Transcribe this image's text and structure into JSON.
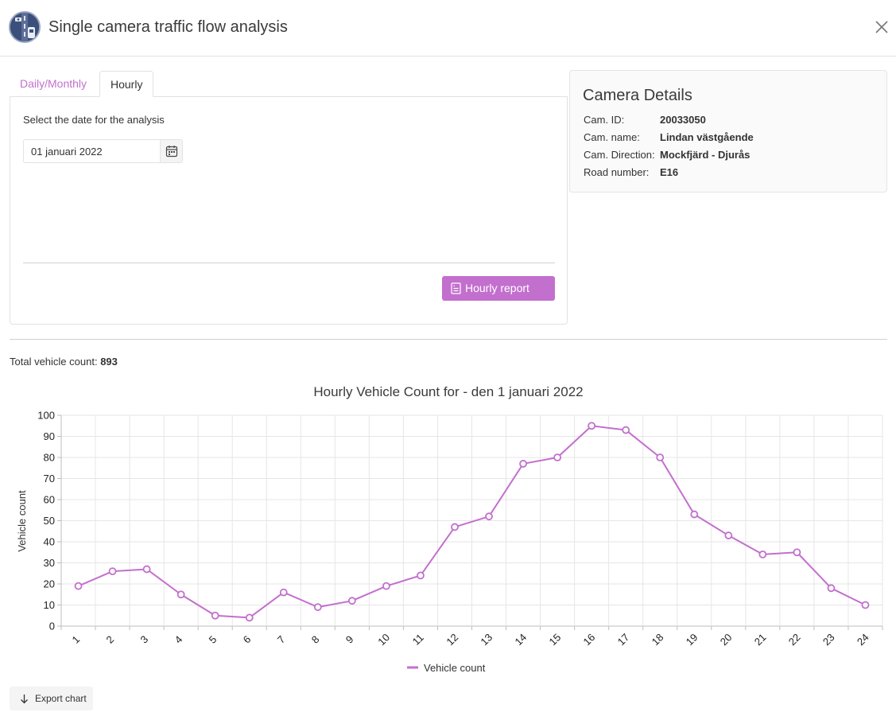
{
  "header": {
    "title": "Single camera traffic flow analysis",
    "logo_icon": "traffic-camera-logo",
    "close_icon": "close-icon"
  },
  "tabs": [
    {
      "label": "Daily/Monthly",
      "active": false
    },
    {
      "label": "Hourly",
      "active": true
    }
  ],
  "analysis": {
    "date_label": "Select the date for the analysis",
    "date_value": "01 januari 2022",
    "report_button": "Hourly report"
  },
  "camera": {
    "title": "Camera Details",
    "fields": [
      {
        "key": "Cam. ID:",
        "value": "20033050"
      },
      {
        "key": "Cam. name:",
        "value": "Lindan västgående"
      },
      {
        "key": "Cam. Direction:",
        "value": "Mockfjärd - Djurås"
      },
      {
        "key": "Road number:",
        "value": "E16"
      }
    ]
  },
  "summary": {
    "total_label": "Total vehicle count:",
    "total_value": "893"
  },
  "chart_data": {
    "type": "line",
    "title": "Hourly Vehicle Count for - den 1 januari 2022",
    "xlabel": "",
    "ylabel": "Vehicle count",
    "x": [
      1,
      2,
      3,
      4,
      5,
      6,
      7,
      8,
      9,
      10,
      11,
      12,
      13,
      14,
      15,
      16,
      17,
      18,
      19,
      20,
      21,
      22,
      23,
      24
    ],
    "ylim": [
      0,
      100
    ],
    "yticks": [
      0,
      10,
      20,
      30,
      40,
      50,
      60,
      70,
      80,
      90,
      100
    ],
    "series": [
      {
        "name": "Vehicle count",
        "color": "#c36fce",
        "values": [
          19,
          26,
          27,
          15,
          5,
          4,
          16,
          9,
          12,
          19,
          24,
          47,
          52,
          77,
          80,
          95,
          93,
          80,
          53,
          43,
          34,
          35,
          18,
          10
        ]
      }
    ],
    "grid": true,
    "legend": "bottom-center"
  },
  "export": {
    "label": "Export chart"
  }
}
